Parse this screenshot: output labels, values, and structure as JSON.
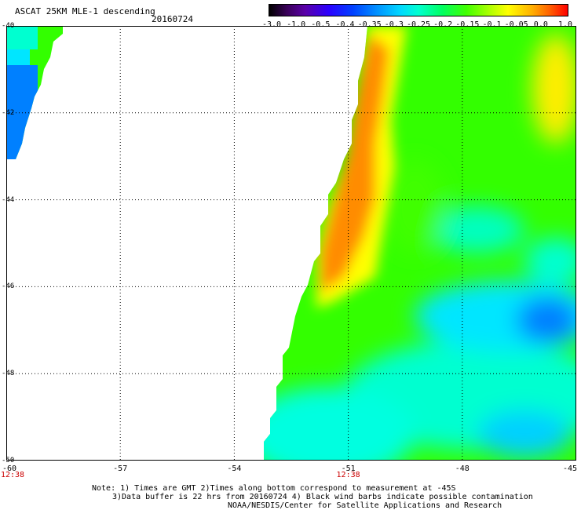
{
  "title": "ASCAT 25KM MLE-1 descending",
  "date": "20160724",
  "colorbar": {
    "labels": [
      "-3.0",
      "-1.0",
      "-0.5",
      "-0.4",
      "-0.35",
      "-0.3",
      "-0.25",
      "-0.2",
      "-0.15",
      "-0.1",
      "-0.05",
      "0.0",
      "1.0"
    ]
  },
  "map": {
    "lon_range": [
      -60,
      -45
    ],
    "lat_range": [
      -50,
      -40
    ],
    "lon_ticks": [
      "-60",
      "-57",
      "-54",
      "-51",
      "-48",
      "-45"
    ],
    "lat_ticks": [
      "-40",
      "-42",
      "-44",
      "-46",
      "-48",
      "-50"
    ],
    "time_labels": [
      {
        "label": "12:38",
        "lon": -60
      },
      {
        "label": "12:38",
        "lon": -51
      }
    ],
    "colors": {
      "orange": "#ff8c00",
      "yellow": "#ffee00",
      "green": "#33ff00",
      "cyan": "#00ffdd",
      "lightblue": "#00c8ff",
      "blue": "#0066ff"
    }
  },
  "notes": {
    "line1": "Note: 1) Times are GMT 2)Times along bottom correspond to measurement at -45S",
    "line2": "3)Data buffer is 22 hrs from 20160724 4) Black wind barbs indicate possible contamination",
    "line3": "NOAA/NESDIS/Center for Satellite Applications and Research"
  }
}
